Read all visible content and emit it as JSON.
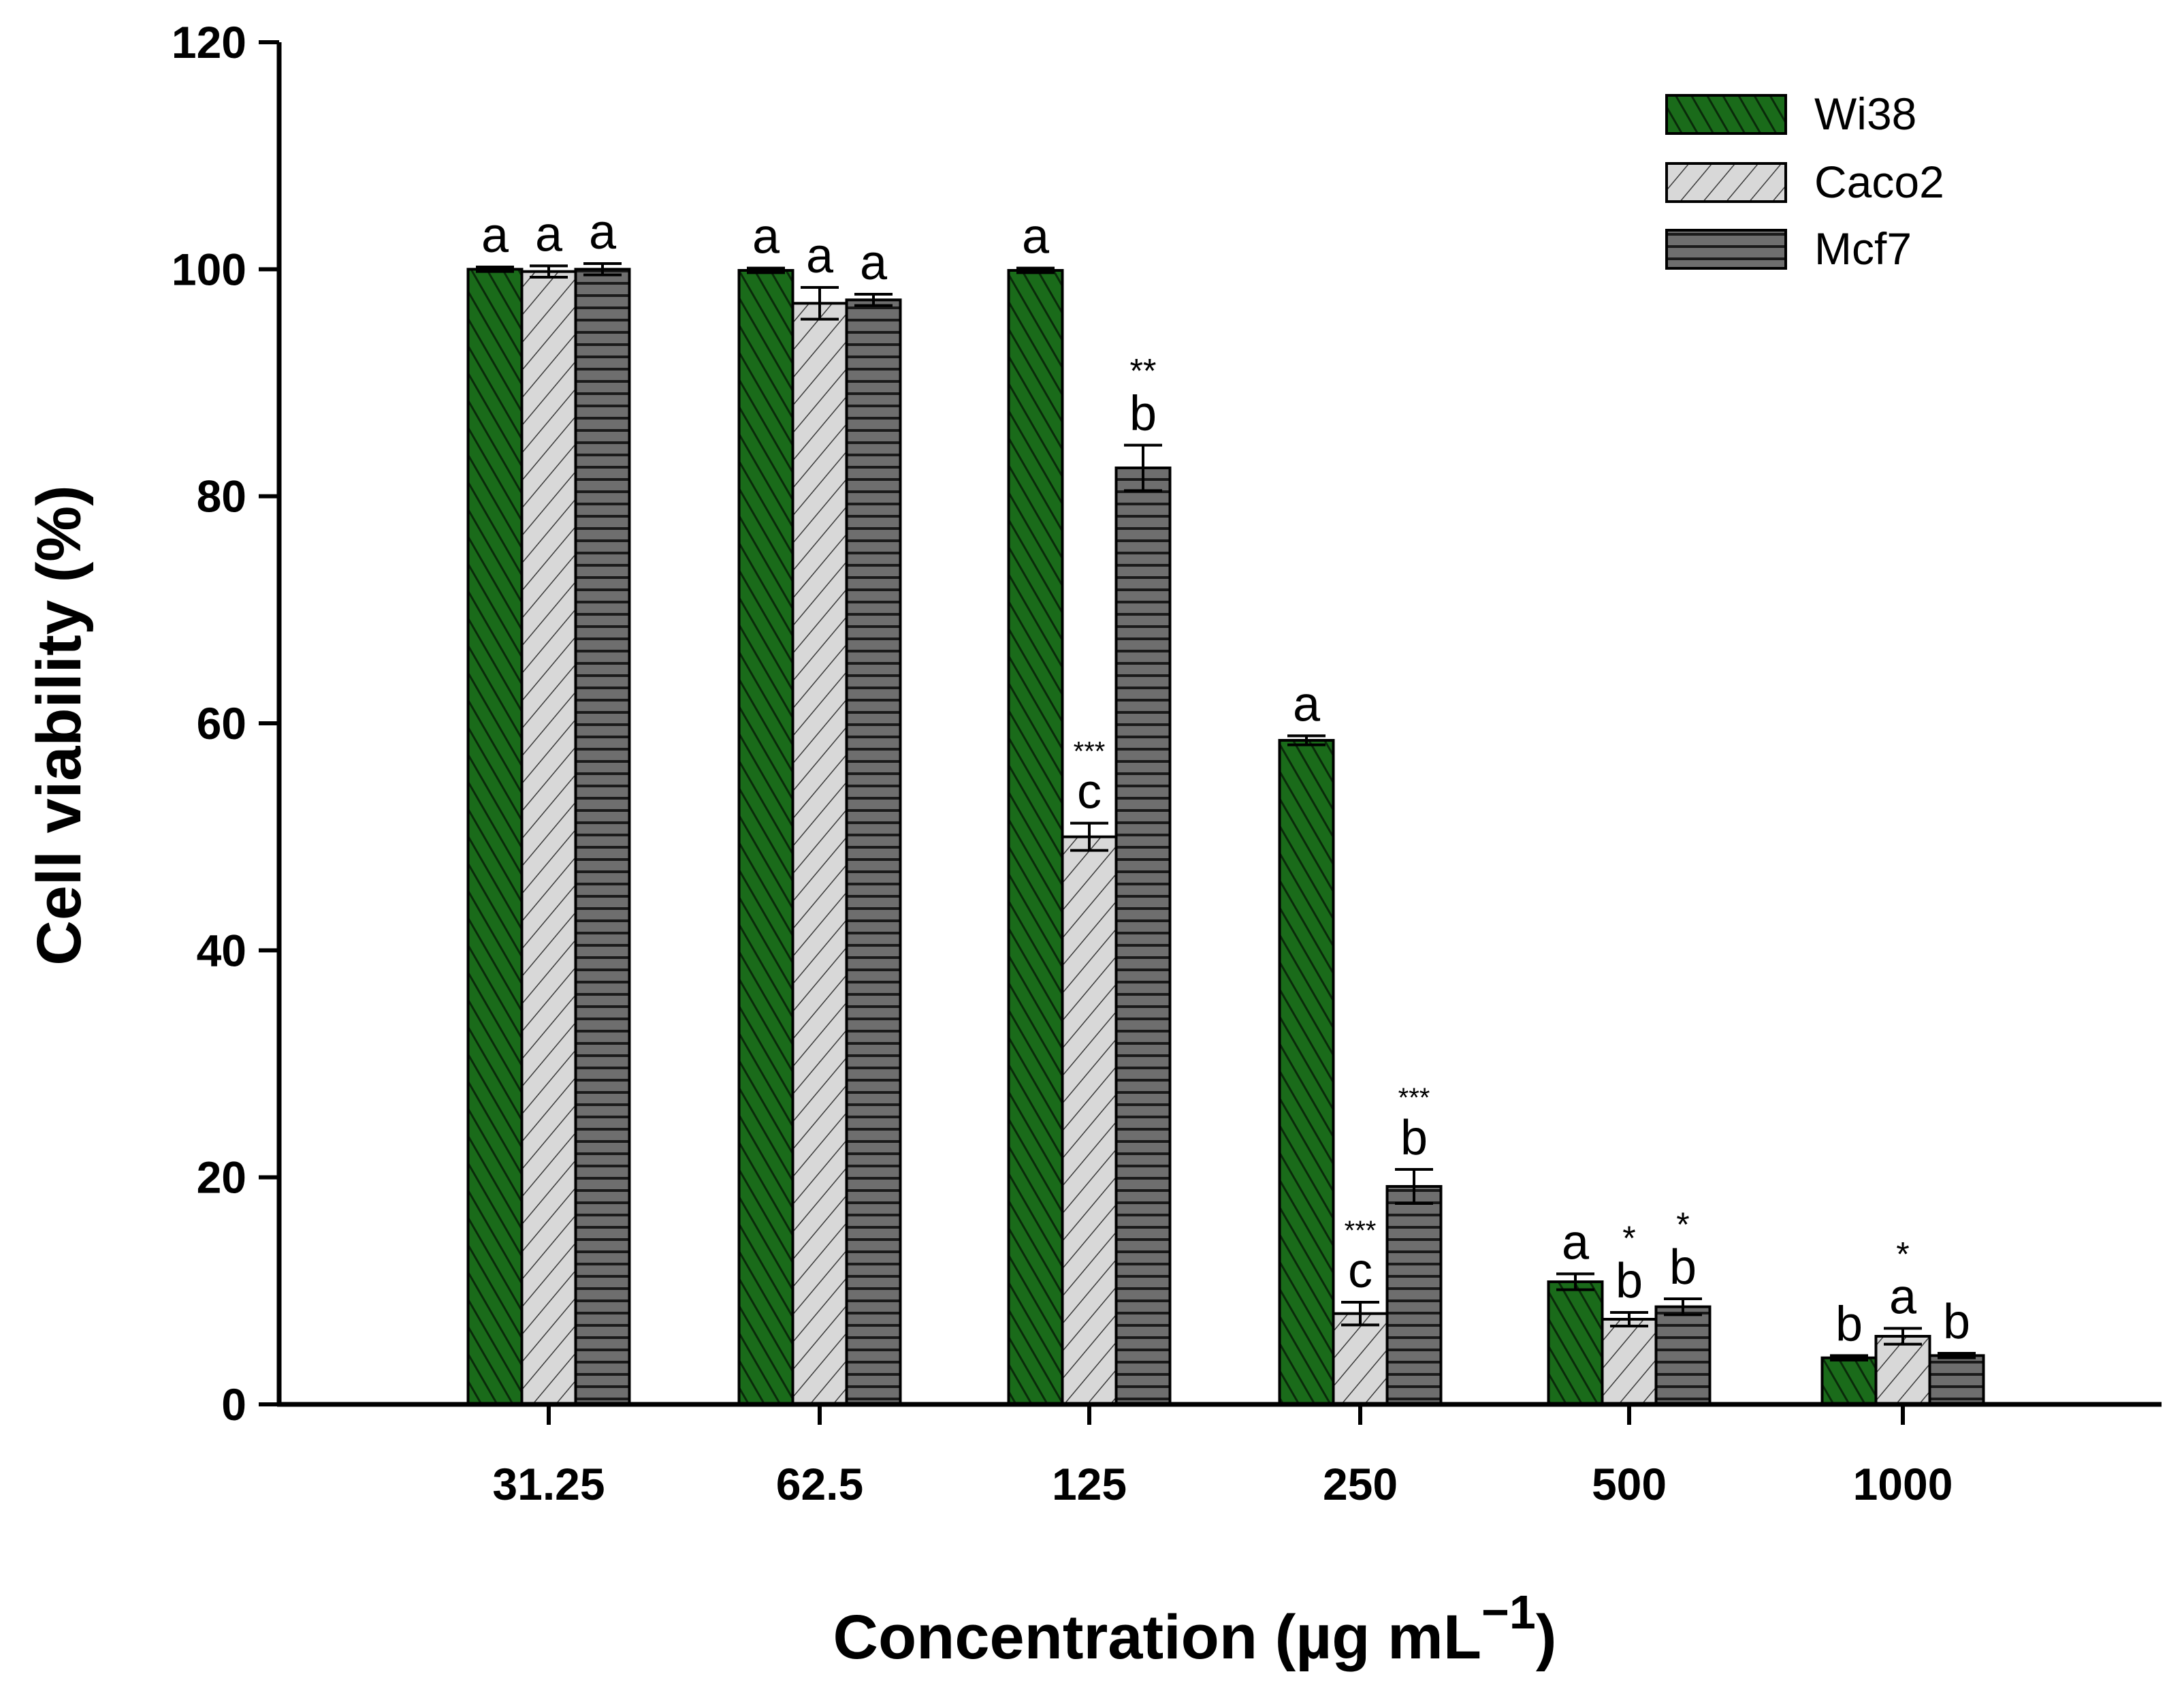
{
  "chart_data": {
    "type": "bar",
    "title": "",
    "xlabel": "Concentration (µg mL",
    "xlabel_superscript": "−1",
    "xlabel_close": ")",
    "ylabel": "Cell viability (%)",
    "ylim": [
      0,
      120
    ],
    "yticks": [
      0,
      20,
      40,
      60,
      80,
      100,
      120
    ],
    "categories": [
      "31.25",
      "62.5",
      "125",
      "250",
      "500",
      "1000"
    ],
    "legend_position": "top-right",
    "series": [
      {
        "name": "Wi38",
        "color": "#1a6b1a",
        "pattern": "dense-forward-hatch",
        "values": [
          100.0,
          99.9,
          99.9,
          58.5,
          10.8,
          4.1
        ],
        "errors": [
          0.2,
          0.2,
          0.2,
          0.4,
          0.7,
          0.2
        ],
        "letters": [
          "a",
          "a",
          "a",
          "a",
          "a",
          "b"
        ],
        "stars": [
          "",
          "",
          "",
          "",
          "",
          ""
        ]
      },
      {
        "name": "Caco2",
        "color": "#d4d4d4",
        "pattern": "back-hatch",
        "values": [
          99.8,
          97.0,
          50.0,
          8.0,
          7.5,
          6.0
        ],
        "errors": [
          0.5,
          1.4,
          1.2,
          1.0,
          0.6,
          0.7
        ],
        "letters": [
          "a",
          "a",
          "c",
          "c",
          "b",
          "a"
        ],
        "stars": [
          "",
          "",
          "***",
          "***",
          "*",
          "*"
        ]
      },
      {
        "name": "Mcf7",
        "color": "#6e6e6e",
        "pattern": "horizontal-lines",
        "values": [
          100.0,
          97.3,
          82.5,
          19.2,
          8.6,
          4.3
        ],
        "errors": [
          0.5,
          0.5,
          2.0,
          1.5,
          0.7,
          0.2
        ],
        "letters": [
          "a",
          "a",
          "b",
          "b",
          "b",
          "b"
        ],
        "stars": [
          "",
          "",
          "**",
          "***",
          "*",
          ""
        ]
      }
    ]
  }
}
